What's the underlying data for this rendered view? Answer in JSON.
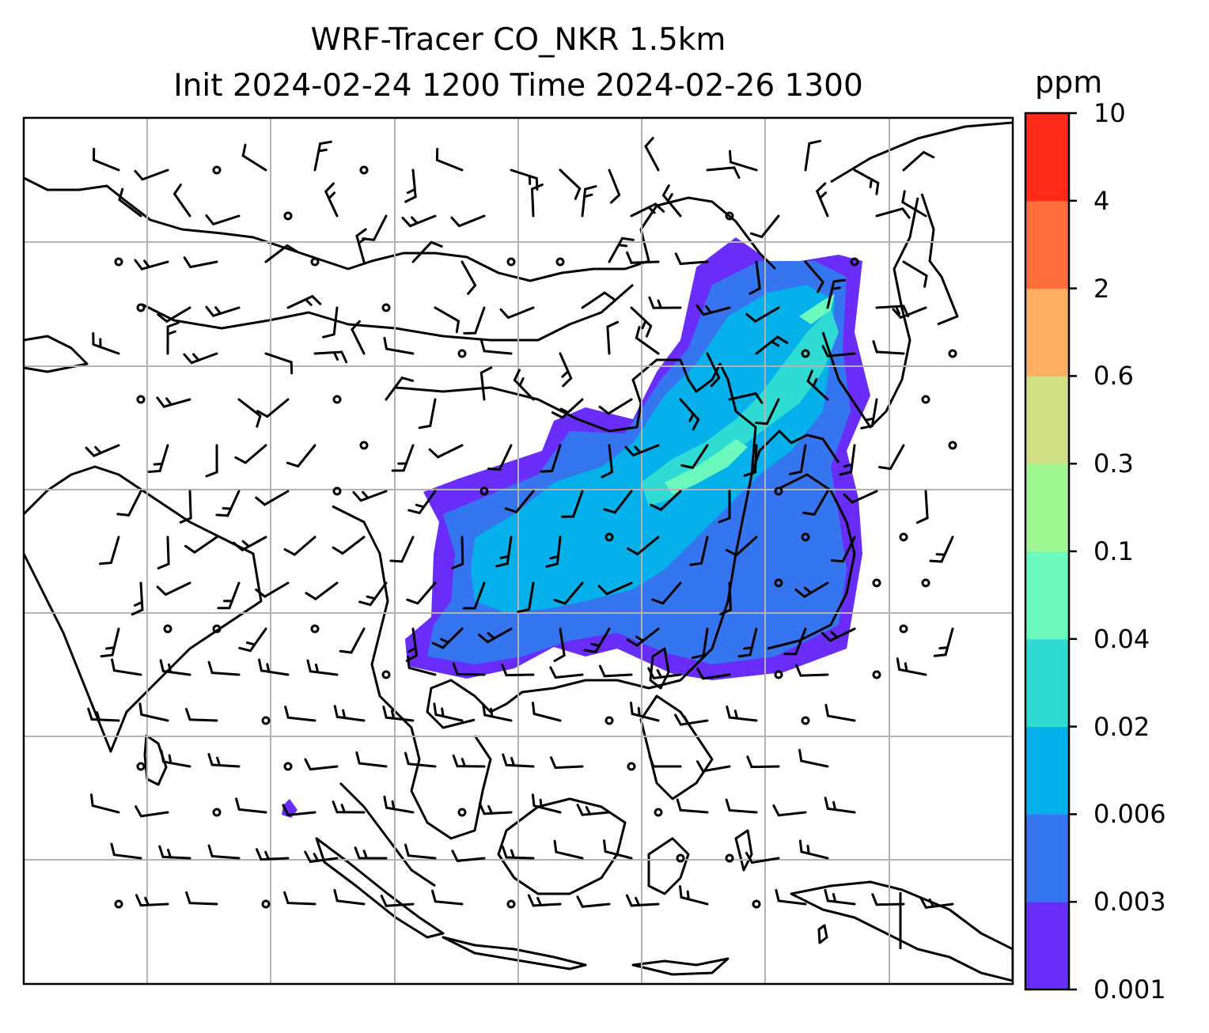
{
  "title": {
    "line1": "WRF-Tracer CO_NKR 1.5km",
    "line2": "Init 2024-02-24 1200 Time 2024-02-26 1300"
  },
  "colorbar": {
    "unit": "ppm",
    "levels": [
      "0.001",
      "0.003",
      "0.006",
      "0.02",
      "0.04",
      "0.1",
      "0.3",
      "0.6",
      "2",
      "4",
      "10"
    ],
    "colors": [
      "#6a2cf8",
      "#3575f0",
      "#06b0ea",
      "#2fdbd3",
      "#6cf9bd",
      "#9ff793",
      "#cfe085",
      "#fdae61",
      "#ff6f3c",
      "#ff2a18"
    ]
  },
  "map": {
    "tracer": "CO_NKR",
    "level": "1.5km",
    "grid_color": "#b3b3b3",
    "coast_color": "#000000",
    "barb_color": "#000000"
  }
}
